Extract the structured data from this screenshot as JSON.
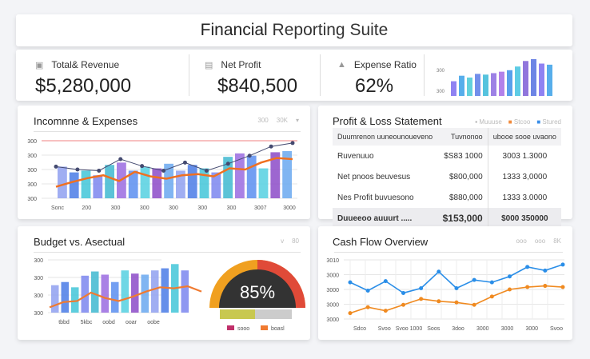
{
  "header": {
    "title_a": "Financial",
    "title_b": " Reporting Suite"
  },
  "kpis": [
    {
      "icon": "wallet-icon",
      "label": "Total& Revenue",
      "value": "$5,280,000"
    },
    {
      "icon": "lock-icon",
      "label": "Net Profit",
      "value": "$840,500"
    },
    {
      "icon": "triangle-icon",
      "label": "Expense Ratio",
      "value": "62%"
    }
  ],
  "mini_chart": {
    "ticks": [
      "300",
      "300"
    ],
    "values": [
      40,
      55,
      50,
      60,
      58,
      62,
      66,
      70,
      80,
      95,
      100,
      88,
      85
    ],
    "colors": [
      "#7b6cf0",
      "#3aa0e8",
      "#48c9d6",
      "#5a7be8",
      "#38b9d8",
      "#8c6be0",
      "#a56be6",
      "#3b8fe8",
      "#42c3e0",
      "#7d5ed6",
      "#5470e0"
    ]
  },
  "income": {
    "title": "Incomnne & Expenses",
    "controls": [
      "300",
      "30K",
      "▾"
    ],
    "yticks": [
      "300",
      "300",
      "300",
      "300",
      "300"
    ],
    "xticks": [
      "Sonc",
      "200",
      "300",
      "300",
      "300",
      "300",
      "300",
      "3007",
      "3000"
    ],
    "bars": [
      55,
      45,
      48,
      40,
      58,
      62,
      48,
      55,
      52,
      60,
      48,
      58,
      52,
      45,
      72,
      78,
      74,
      52,
      80,
      82
    ],
    "line_orange": [
      20,
      28,
      35,
      40,
      30,
      46,
      38,
      34,
      40,
      42,
      38,
      52,
      50,
      62,
      70,
      68
    ],
    "line_dark": [
      55,
      50,
      48,
      68,
      56,
      48,
      62,
      48,
      60,
      74,
      90,
      96
    ]
  },
  "pnl": {
    "title": "Profit & Loss Statement",
    "legend": [
      "Muuuse",
      "Stcoo",
      "Stured"
    ],
    "legend_colors": [
      "#aaa",
      "#f08a3c",
      "#3a8ee8"
    ],
    "head": [
      "Duumrenon uuneounoueveno",
      "Tuvnonoo",
      "ubooe sooe  uvaono"
    ],
    "rows": [
      [
        "Ruvenuuo",
        "$S83 1000",
        "3003 1.3000"
      ],
      [
        "Net pnoos  beuvesus",
        "$800,000",
        "1333 3,0000"
      ],
      [
        "Nes Profit  buvuesono",
        "$880,000",
        "1333 3.0000"
      ]
    ],
    "total": [
      "Duueeoo auuurt .....",
      "$153,000",
      "$000 350000"
    ]
  },
  "budget": {
    "title": "Budget vs. Asectual",
    "controls": [
      "v",
      "80"
    ],
    "yticks": [
      "300",
      "300",
      "300",
      "300"
    ],
    "xticks": [
      "tbbd",
      "5kbc",
      "oobd",
      "ooar",
      "oobe"
    ],
    "bars": [
      52,
      58,
      48,
      70,
      78,
      72,
      58,
      80,
      74,
      72,
      80,
      84,
      92,
      80
    ],
    "line": [
      10,
      20,
      22,
      38,
      28,
      22,
      30,
      40,
      48,
      46,
      50,
      40
    ],
    "gauge": {
      "value_label": "85%",
      "value": 85
    },
    "legend": [
      "sooo",
      "boasl"
    ],
    "legend_colors": [
      "#c0306a",
      "#f07a30"
    ]
  },
  "cashflow": {
    "title": "Cash Flow Overview",
    "controls": [
      "ooo",
      "ooo",
      "8K"
    ],
    "yticks": [
      "3010",
      "3000",
      "3000",
      "3000",
      "3000"
    ],
    "xticks": [
      "Sdco",
      "Svoo",
      "Svoo 1000",
      "Soos",
      "3doo",
      "3000",
      "3000",
      "3000",
      "Svoo"
    ],
    "line_blue": [
      62,
      48,
      64,
      44,
      52,
      80,
      52,
      66,
      62,
      72,
      88,
      82,
      92
    ],
    "line_orange": [
      10,
      20,
      14,
      24,
      34,
      30,
      28,
      24,
      38,
      50,
      54,
      56,
      54
    ]
  }
}
